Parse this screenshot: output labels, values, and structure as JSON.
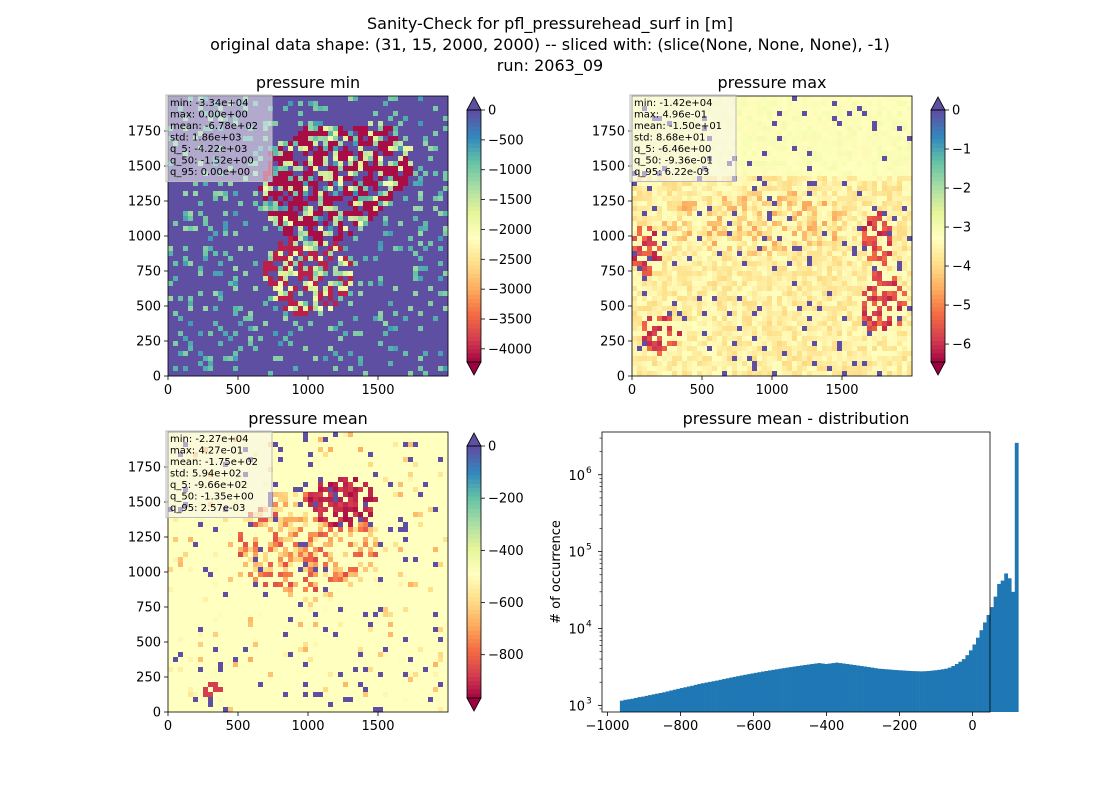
{
  "figure": {
    "suptitle_lines": [
      "Sanity-Check for pfl_pressurehead_surf in [m]",
      "original data shape: (31, 15, 2000, 2000) -- sliced with: (slice(None, None, None), -1)",
      "run: 2063_09"
    ]
  },
  "colors": {
    "spectral": [
      "#9e0142",
      "#d53e4f",
      "#f46d43",
      "#fdae61",
      "#fee08b",
      "#ffffbf",
      "#e6f598",
      "#abdda4",
      "#66c2a5",
      "#3288bd",
      "#5e4fa2"
    ],
    "hist_bar": "#1f77b4",
    "stats_box_bg": "#f5f5f0",
    "stats_box_border": "#bbbbbb"
  },
  "chart_data": [
    {
      "type": "heatmap",
      "title": "pressure min",
      "colormap": "Spectral",
      "xlim": [
        0,
        2000
      ],
      "ylim": [
        0,
        2000
      ],
      "xticks": [
        0,
        500,
        1000,
        1500
      ],
      "yticks": [
        0,
        250,
        500,
        750,
        1000,
        1250,
        1500,
        1750
      ],
      "colorbar": {
        "vmin": -4220,
        "vmax": 0,
        "ticks": [
          0,
          -500,
          -1000,
          -1500,
          -2000,
          -2500,
          -3000,
          -3500,
          -4000
        ],
        "extend": "both"
      },
      "stats": [
        "min: -3.34e+04",
        "max: 0.00e+00",
        "mean: -6.78e+02",
        "std: 1.86e+03",
        "q_5: -4.22e+03",
        "q_50: -1.52e+00",
        "q_95: 0.00e+00"
      ]
    },
    {
      "type": "heatmap",
      "title": "pressure max",
      "colormap": "Spectral",
      "xlim": [
        0,
        2000
      ],
      "ylim": [
        0,
        2000
      ],
      "xticks": [
        0,
        500,
        1000,
        1500
      ],
      "yticks": [
        0,
        250,
        500,
        750,
        1000,
        1250,
        1500,
        1750
      ],
      "colorbar": {
        "vmin": -6.46,
        "vmax": 0,
        "ticks": [
          0,
          -1,
          -2,
          -3,
          -4,
          -5,
          -6
        ],
        "extend": "both"
      },
      "stats": [
        "min: -1.42e+04",
        "max: 4.96e-01",
        "mean: -1.50e+01",
        "std: 8.68e+01",
        "q_5: -6.46e+00",
        "q_50: -9.36e-01",
        "q_95: 6.22e-03"
      ]
    },
    {
      "type": "heatmap",
      "title": "pressure mean",
      "colormap": "Spectral",
      "xlim": [
        0,
        2000
      ],
      "ylim": [
        0,
        2000
      ],
      "xticks": [
        0,
        500,
        1000,
        1500
      ],
      "yticks": [
        0,
        250,
        500,
        750,
        1000,
        1250,
        1500,
        1750
      ],
      "colorbar": {
        "vmin": -966,
        "vmax": 0,
        "ticks": [
          0,
          -200,
          -400,
          -600,
          -800
        ],
        "extend": "both"
      },
      "stats": [
        "min: -2.27e+04",
        "max: 4.27e-01",
        "mean: -1.75e+02",
        "std: 5.94e+02",
        "q_5: -9.66e+02",
        "q_50: -1.35e+00",
        "q_95: 2.57e-03"
      ]
    },
    {
      "type": "bar",
      "title": "pressure mean - distribution",
      "xlabel": "",
      "ylabel": "# of occurrence",
      "yscale": "log",
      "xlim": [
        -1015,
        48
      ],
      "ylim": [
        820,
        3600000
      ],
      "xticks": [
        -1000,
        -800,
        -600,
        -400,
        -200,
        0
      ],
      "yticks": [
        1000,
        10000,
        100000,
        1000000
      ],
      "ytick_labels": [
        "10",
        "10",
        "10",
        "10"
      ],
      "ytick_exponents": [
        "3",
        "4",
        "5",
        "6"
      ],
      "bin_start": -966,
      "bin_width": 9.66,
      "values": [
        1150,
        1180,
        1200,
        1220,
        1250,
        1280,
        1300,
        1330,
        1360,
        1390,
        1420,
        1450,
        1480,
        1520,
        1560,
        1600,
        1640,
        1680,
        1720,
        1760,
        1800,
        1850,
        1900,
        1940,
        1980,
        2020,
        2060,
        2100,
        2150,
        2200,
        2250,
        2300,
        2350,
        2400,
        2450,
        2500,
        2550,
        2600,
        2650,
        2700,
        2750,
        2800,
        2850,
        2900,
        2950,
        3000,
        3050,
        3100,
        3150,
        3200,
        3250,
        3300,
        3350,
        3400,
        3450,
        3500,
        3550,
        3500,
        3450,
        3500,
        3550,
        3600,
        3550,
        3500,
        3450,
        3400,
        3350,
        3300,
        3250,
        3200,
        3150,
        3100,
        3050,
        3000,
        2980,
        2950,
        2930,
        2900,
        2880,
        2860,
        2840,
        2820,
        2800,
        2790,
        2780,
        2770,
        2780,
        2800,
        2830,
        2860,
        2900,
        2950,
        3000,
        3100,
        3250,
        3450,
        3700,
        4000,
        4500,
        5200,
        6200,
        7600,
        9500,
        12000,
        15000,
        19000,
        26000,
        38000,
        42000,
        52000,
        45000,
        30000,
        2600000
      ]
    }
  ]
}
